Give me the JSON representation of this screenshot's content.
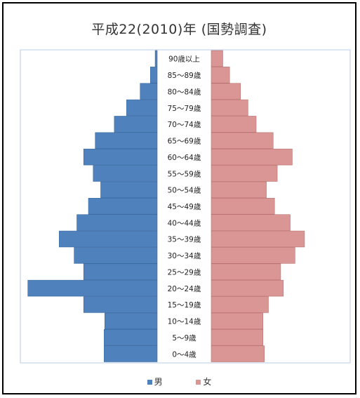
{
  "chart_data": {
    "type": "bar",
    "title": "平成22(2010)年 (国勢調査)",
    "categories": [
      "0～4歳",
      "5～9歳",
      "10～14歳",
      "15～19歳",
      "20～24歳",
      "25～29歳",
      "30～34歳",
      "35～39歳",
      "40～44歳",
      "45～49歳",
      "50～54歳",
      "55～59歳",
      "60～64歳",
      "65～69歳",
      "70～74歳",
      "75～79歳",
      "80～84歳",
      "85～89歳",
      "90歳以上"
    ],
    "series": [
      {
        "name": "男",
        "color": "#4f81bd",
        "values": [
          78,
          78,
          77,
          108,
          190,
          108,
          122,
          144,
          118,
          101,
          83,
          94,
          108,
          91,
          63,
          45,
          25,
          10,
          3
        ]
      },
      {
        "name": "女",
        "color": "#d99694",
        "values": [
          78,
          76,
          76,
          84,
          106,
          102,
          123,
          137,
          116,
          93,
          81,
          97,
          119,
          91,
          66,
          54,
          43,
          27,
          17
        ]
      }
    ],
    "xlim": [
      0,
      200
    ],
    "grid": false,
    "legend_position": "bottom"
  }
}
